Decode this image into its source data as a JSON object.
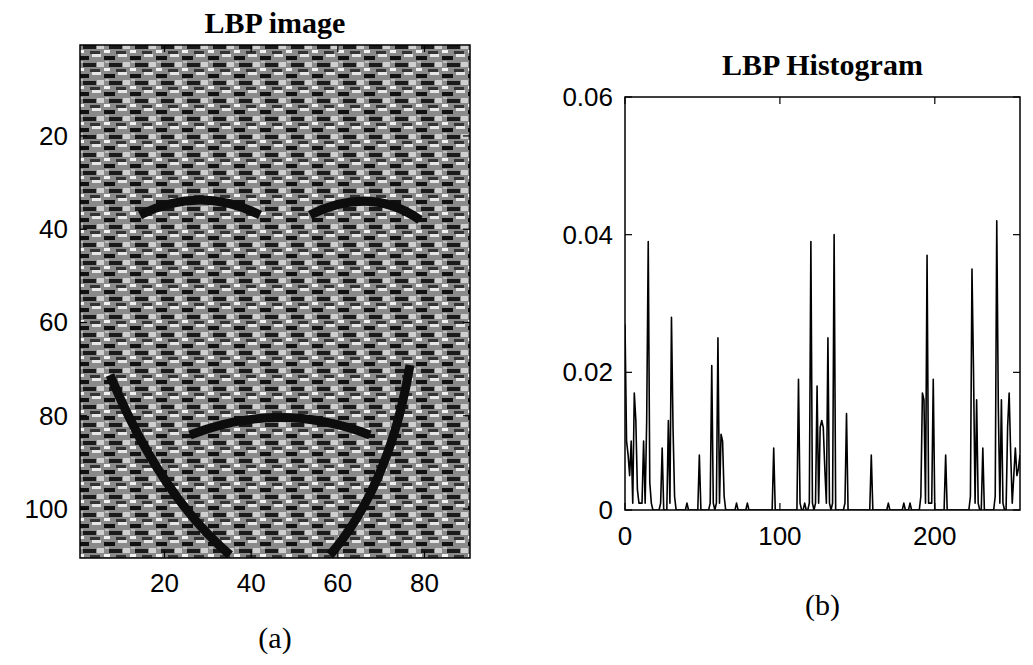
{
  "chart_data": [
    {
      "type": "image",
      "title": "LBP image",
      "xlabel": "(a)",
      "xlim": [
        0.5,
        90.5
      ],
      "ylim": [
        0.5,
        110.5
      ],
      "xticks": [
        20,
        40,
        60,
        80
      ],
      "yticks": [
        20,
        40,
        60,
        80,
        100
      ]
    },
    {
      "type": "line",
      "title": "LBP Histogram",
      "xlabel": "(b)",
      "color": "#000000",
      "xlim": [
        0,
        255
      ],
      "ylim": [
        0,
        0.06
      ],
      "xticks": [
        0,
        100,
        200
      ],
      "yticks": [
        0,
        0.02,
        0.04,
        0.06
      ],
      "x": [
        0,
        1,
        2,
        3,
        4,
        5,
        6,
        7,
        8,
        9,
        10,
        11,
        12,
        13,
        14,
        15,
        16,
        17,
        18,
        19,
        20,
        21,
        22,
        23,
        24,
        25,
        26,
        27,
        28,
        29,
        30,
        31,
        32,
        33,
        34,
        35,
        36,
        37,
        38,
        39,
        40,
        41,
        42,
        43,
        44,
        45,
        46,
        47,
        48,
        49,
        50,
        51,
        52,
        53,
        54,
        55,
        56,
        57,
        58,
        59,
        60,
        61,
        62,
        63,
        64,
        65,
        66,
        67,
        68,
        69,
        70,
        71,
        72,
        73,
        74,
        75,
        76,
        77,
        78,
        79,
        80,
        81,
        82,
        83,
        84,
        85,
        86,
        87,
        88,
        89,
        90,
        91,
        92,
        93,
        94,
        95,
        96,
        97,
        98,
        99,
        100,
        101,
        102,
        103,
        104,
        105,
        106,
        107,
        108,
        109,
        110,
        111,
        112,
        113,
        114,
        115,
        116,
        117,
        118,
        119,
        120,
        121,
        122,
        123,
        124,
        125,
        126,
        127,
        128,
        129,
        130,
        131,
        132,
        133,
        134,
        135,
        136,
        137,
        138,
        139,
        140,
        141,
        142,
        143,
        144,
        145,
        146,
        147,
        148,
        149,
        150,
        151,
        152,
        153,
        154,
        155,
        156,
        157,
        158,
        159,
        160,
        161,
        162,
        163,
        164,
        165,
        166,
        167,
        168,
        169,
        170,
        171,
        172,
        173,
        174,
        175,
        176,
        177,
        178,
        179,
        180,
        181,
        182,
        183,
        184,
        185,
        186,
        187,
        188,
        189,
        190,
        191,
        192,
        193,
        194,
        195,
        196,
        197,
        198,
        199,
        200,
        201,
        202,
        203,
        204,
        205,
        206,
        207,
        208,
        209,
        210,
        211,
        212,
        213,
        214,
        215,
        216,
        217,
        218,
        219,
        220,
        221,
        222,
        223,
        224,
        225,
        226,
        227,
        228,
        229,
        230,
        231,
        232,
        233,
        234,
        235,
        236,
        237,
        238,
        239,
        240,
        241,
        242,
        243,
        244,
        245,
        246,
        247,
        248,
        249,
        250,
        251,
        252,
        253,
        254,
        255
      ],
      "values": [
        0.027,
        0.01,
        0.008,
        0.005,
        0.01,
        0.001,
        0.017,
        0.013,
        0.003,
        0.001,
        0.001,
        0.001,
        0.01,
        0.001,
        0.013,
        0.039,
        0.004,
        0.001,
        0,
        0,
        0,
        0,
        0,
        0.001,
        0.009,
        0,
        0,
        0,
        0.013,
        0.001,
        0.028,
        0.012,
        0.002,
        0,
        0,
        0,
        0,
        0,
        0,
        0,
        0.001,
        0,
        0,
        0,
        0,
        0,
        0,
        0,
        0.008,
        0,
        0,
        0,
        0,
        0,
        0,
        0.001,
        0.021,
        0.001,
        0,
        0.001,
        0.025,
        0.001,
        0.011,
        0.01,
        0.002,
        0,
        0,
        0,
        0,
        0,
        0,
        0,
        0.001,
        0,
        0,
        0,
        0,
        0,
        0,
        0.001,
        0,
        0,
        0,
        0,
        0,
        0,
        0,
        0,
        0,
        0,
        0,
        0,
        0,
        0,
        0,
        0,
        0.009,
        0,
        0,
        0,
        0,
        0,
        0,
        0,
        0,
        0,
        0,
        0,
        0,
        0,
        0,
        0,
        0.019,
        0.001,
        0,
        0,
        0.001,
        0,
        0,
        0.001,
        0.039,
        0.001,
        0,
        0.001,
        0.018,
        0.001,
        0.012,
        0.013,
        0.012,
        0.006,
        0.001,
        0.025,
        0.001,
        0,
        0.001,
        0.04,
        0,
        0,
        0,
        0,
        0,
        0,
        0.001,
        0.014,
        0,
        0,
        0,
        0,
        0,
        0,
        0,
        0,
        0,
        0,
        0,
        0,
        0,
        0,
        0,
        0.008,
        0,
        0,
        0,
        0,
        0,
        0,
        0,
        0,
        0,
        0,
        0.001,
        0,
        0,
        0,
        0,
        0,
        0,
        0,
        0,
        0,
        0.001,
        0,
        0,
        0,
        0.001,
        0,
        0,
        0,
        0,
        0,
        0,
        0.002,
        0.017,
        0.016,
        0.001,
        0.037,
        0.001,
        0.001,
        0.001,
        0.019,
        0,
        0,
        0,
        0,
        0,
        0,
        0,
        0.008,
        0,
        0,
        0,
        0,
        0,
        0,
        0,
        0,
        0,
        0,
        0,
        0,
        0,
        0,
        0,
        0.002,
        0.035,
        0.02,
        0.001,
        0.016,
        0.001,
        0,
        0,
        0.009,
        0,
        0,
        0,
        0,
        0,
        0,
        0,
        0.002,
        0.042,
        0.015,
        0.001,
        0.016,
        0.001,
        0,
        0,
        0.012,
        0.017,
        0.008,
        0.001,
        0.005,
        0.009,
        0.005,
        0.006,
        0.008
      ]
    }
  ]
}
